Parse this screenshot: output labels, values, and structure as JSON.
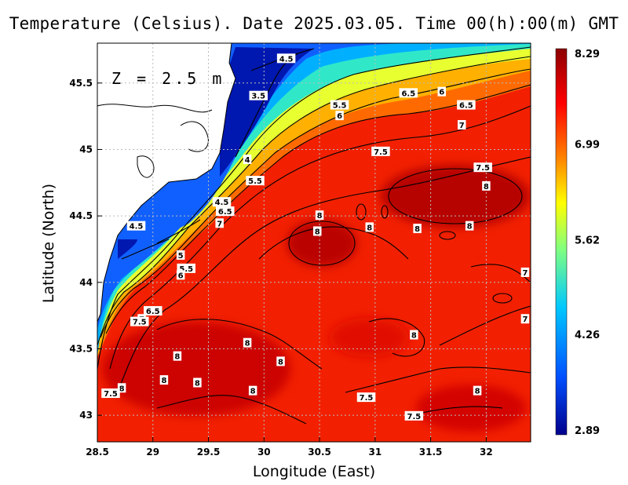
{
  "title": "Temperature (Celsius). Date 2025.03.05. Time 00(h):00(m) GMT",
  "depth_label": "Z = 2.5 m",
  "axes": {
    "xlabel": "Longitude (East)",
    "ylabel": "Latitude (North)",
    "xlim": [
      28.5,
      32.4
    ],
    "ylim": [
      42.8,
      45.8
    ],
    "xticks": [
      "28.5",
      "29",
      "29.5",
      "30",
      "30.5",
      "31",
      "31.5",
      "32"
    ],
    "yticks": [
      "43",
      "43.5",
      "44",
      "44.5",
      "45",
      "45.5"
    ],
    "grid": true
  },
  "colorbar": {
    "range": [
      2.89,
      8.29
    ],
    "tick_labels": [
      "8.29",
      "6.99",
      "5.62",
      "4.26",
      "2.89"
    ],
    "colors": [
      "#00008c",
      "#0050ff",
      "#00c8ff",
      "#80ff80",
      "#ffff00",
      "#ff8000",
      "#ff0000",
      "#8c0000"
    ]
  },
  "chart_data": {
    "type": "heatmap",
    "title": "Temperature (Celsius). Date 2025.03.05. Time 00(h):00(m) GMT",
    "xlabel": "Longitude (East)",
    "ylabel": "Latitude (North)",
    "contour_labels": [
      {
        "text": "4.5",
        "lon": 30.2,
        "lat": 45.68
      },
      {
        "text": "3.5",
        "lon": 29.95,
        "lat": 45.4
      },
      {
        "text": "5.5",
        "lon": 30.68,
        "lat": 45.33
      },
      {
        "text": "6",
        "lon": 30.68,
        "lat": 45.25
      },
      {
        "text": "6.5",
        "lon": 31.3,
        "lat": 45.42
      },
      {
        "text": "6",
        "lon": 31.6,
        "lat": 45.43
      },
      {
        "text": "6.5",
        "lon": 31.82,
        "lat": 45.33
      },
      {
        "text": "7",
        "lon": 31.78,
        "lat": 45.18
      },
      {
        "text": "7.5",
        "lon": 31.05,
        "lat": 44.98
      },
      {
        "text": "7.5",
        "lon": 31.97,
        "lat": 44.86
      },
      {
        "text": "4",
        "lon": 29.85,
        "lat": 44.92
      },
      {
        "text": "5.5",
        "lon": 29.92,
        "lat": 44.76
      },
      {
        "text": "8",
        "lon": 32.0,
        "lat": 44.72
      },
      {
        "text": "4.5",
        "lon": 29.62,
        "lat": 44.6
      },
      {
        "text": "6.5",
        "lon": 29.65,
        "lat": 44.53
      },
      {
        "text": "7",
        "lon": 29.6,
        "lat": 44.44
      },
      {
        "text": "8",
        "lon": 30.5,
        "lat": 44.5
      },
      {
        "text": "8",
        "lon": 30.48,
        "lat": 44.38
      },
      {
        "text": "8",
        "lon": 30.95,
        "lat": 44.41
      },
      {
        "text": "8",
        "lon": 31.38,
        "lat": 44.4
      },
      {
        "text": "8",
        "lon": 31.85,
        "lat": 44.42
      },
      {
        "text": "4.5",
        "lon": 28.85,
        "lat": 44.42
      },
      {
        "text": "5",
        "lon": 29.25,
        "lat": 44.2
      },
      {
        "text": "5.5",
        "lon": 29.3,
        "lat": 44.1
      },
      {
        "text": "6",
        "lon": 29.25,
        "lat": 44.05
      },
      {
        "text": "7",
        "lon": 32.35,
        "lat": 44.07
      },
      {
        "text": "6.5",
        "lon": 29.0,
        "lat": 43.78
      },
      {
        "text": "7",
        "lon": 28.9,
        "lat": 43.72
      },
      {
        "text": "7.5",
        "lon": 28.88,
        "lat": 43.7
      },
      {
        "text": "7",
        "lon": 32.35,
        "lat": 43.72
      },
      {
        "text": "8",
        "lon": 31.35,
        "lat": 43.6
      },
      {
        "text": "8",
        "lon": 29.85,
        "lat": 43.54
      },
      {
        "text": "8",
        "lon": 29.22,
        "lat": 43.44
      },
      {
        "text": "8",
        "lon": 30.15,
        "lat": 43.4
      },
      {
        "text": "8",
        "lon": 29.1,
        "lat": 43.26
      },
      {
        "text": "8",
        "lon": 29.4,
        "lat": 43.24
      },
      {
        "text": "8",
        "lon": 28.72,
        "lat": 43.2
      },
      {
        "text": "7.5",
        "lon": 28.62,
        "lat": 43.16
      },
      {
        "text": "8",
        "lon": 29.9,
        "lat": 43.18
      },
      {
        "text": "8",
        "lon": 31.92,
        "lat": 43.18
      },
      {
        "text": "7.5",
        "lon": 30.92,
        "lat": 43.13
      },
      {
        "text": "7.5",
        "lon": 31.35,
        "lat": 42.99
      }
    ]
  }
}
